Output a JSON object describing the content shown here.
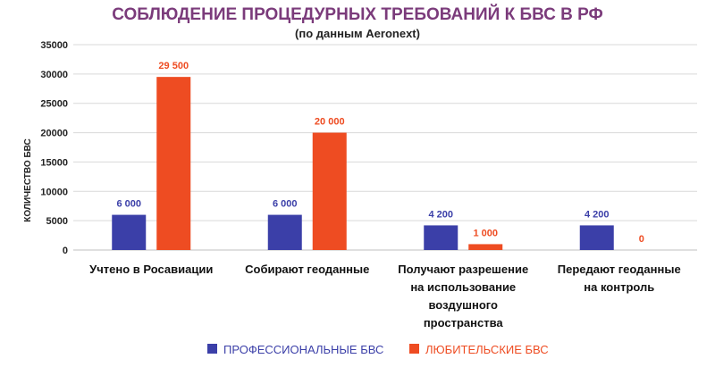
{
  "colors": {
    "professional": "#3b3fa8",
    "amateur": "#ee4c22",
    "title": "#7b3b7b",
    "grid": "#d9d9d9"
  },
  "chart_data": {
    "type": "bar",
    "title": "СОБЛЮДЕНИЕ ПРОЦЕДУРНЫХ ТРЕБОВАНИЙ К БВС В РФ",
    "subtitle": "(по данным Aeronext)",
    "xlabel": "",
    "ylabel": "КОЛИЧЕСТВО БВС",
    "ylim": [
      0,
      35000
    ],
    "yticks": [
      "0",
      "5000",
      "10000",
      "15000",
      "20000",
      "25000",
      "30000",
      "35000"
    ],
    "grid": true,
    "legend_position": "bottom",
    "categories": [
      [
        "Учтено в Росавиации"
      ],
      [
        "Собирают геоданные"
      ],
      [
        "Получают разрешение",
        "на использование",
        "воздушного",
        "пространства"
      ],
      [
        "Передают геоданные",
        "на контроль"
      ]
    ],
    "series": [
      {
        "name": "ПРОФЕССИОНАЛЬНЫЕ БВС",
        "values": [
          6000,
          6000,
          4200,
          4200
        ],
        "labels": [
          "6 000",
          "6 000",
          "4 200",
          "4 200"
        ]
      },
      {
        "name": "ЛЮБИТЕЛЬСКИЕ БВС",
        "values": [
          29500,
          20000,
          1000,
          0
        ],
        "labels": [
          "29 500",
          "20 000",
          "1 000",
          "0"
        ]
      }
    ]
  }
}
